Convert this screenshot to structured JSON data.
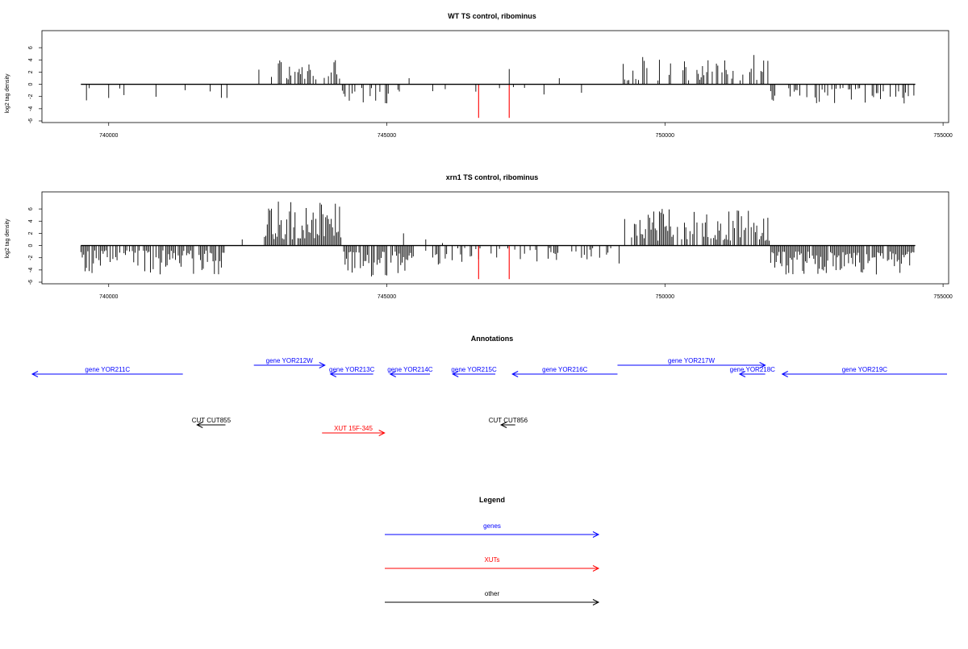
{
  "colors": {
    "bar": "#000000",
    "highlight": "#ff0000",
    "gene": "#0000ff",
    "xut": "#ff0000",
    "other": "#000000",
    "frame": "#000000"
  },
  "chart_data": [
    {
      "type": "bar",
      "title": "WT TS control, ribominus",
      "ylabel": "log2 tag density",
      "xlabel": "",
      "xlim": [
        738800,
        755100
      ],
      "ylim": [
        -6,
        8
      ],
      "xticks": [
        "740000",
        "745000",
        "750000",
        "755000"
      ],
      "yticks": [
        "6",
        "4",
        "2",
        "0",
        "-2",
        "-4",
        "-6"
      ],
      "grid": false,
      "seed": 7,
      "regions": [
        {
          "from": 739500,
          "to": 742200,
          "sign": -1,
          "min": 0.6,
          "max": 3.2,
          "density": 0.12
        },
        {
          "from": 742900,
          "to": 744200,
          "sign": 1,
          "min": 0.8,
          "max": 4.0,
          "density": 0.45
        },
        {
          "from": 744200,
          "to": 745300,
          "sign": -1,
          "min": 0.6,
          "max": 3.2,
          "density": 0.4
        },
        {
          "from": 745300,
          "to": 749200,
          "sign": -1,
          "min": 0.4,
          "max": 2.0,
          "density": 0.04
        },
        {
          "from": 749200,
          "to": 751900,
          "sign": 1,
          "min": 0.6,
          "max": 4.5,
          "density": 0.4
        },
        {
          "from": 751900,
          "to": 754500,
          "sign": -1,
          "min": 0.6,
          "max": 3.2,
          "density": 0.3
        }
      ],
      "spikes": [
        {
          "x": 742700,
          "y": 2.4
        },
        {
          "x": 745400,
          "y": 1.0
        },
        {
          "x": 746600,
          "y": -1.2
        },
        {
          "x": 747200,
          "y": 2.5
        },
        {
          "x": 748100,
          "y": 1.0
        },
        {
          "x": 751600,
          "y": 4.8
        }
      ],
      "highlights": [
        {
          "x": 746650,
          "y": -5.5
        },
        {
          "x": 747200,
          "y": -5.5
        }
      ]
    },
    {
      "type": "bar",
      "title": "xrn1 TS control, ribominus",
      "ylabel": "log2 tag density",
      "xlabel": "",
      "xlim": [
        738800,
        755100
      ],
      "ylim": [
        -6,
        8
      ],
      "xticks": [
        "740000",
        "745000",
        "750000",
        "755000"
      ],
      "yticks": [
        "6",
        "4",
        "2",
        "0",
        "-2",
        "-4",
        "-6"
      ],
      "grid": false,
      "seed": 21,
      "regions": [
        {
          "from": 739500,
          "to": 742100,
          "sign": -1,
          "min": 0.8,
          "max": 5.0,
          "density": 0.7
        },
        {
          "from": 742800,
          "to": 744200,
          "sign": 1,
          "min": 1.0,
          "max": 7.2,
          "density": 0.95
        },
        {
          "from": 744200,
          "to": 745500,
          "sign": -1,
          "min": 1.0,
          "max": 5.2,
          "density": 0.9
        },
        {
          "from": 745500,
          "to": 749200,
          "sign": -1,
          "min": 0.4,
          "max": 3.2,
          "density": 0.3
        },
        {
          "from": 749200,
          "to": 751900,
          "sign": 1,
          "min": 0.8,
          "max": 6.0,
          "density": 0.75
        },
        {
          "from": 751900,
          "to": 754500,
          "sign": -1,
          "min": 1.0,
          "max": 4.8,
          "density": 0.9
        }
      ],
      "spikes": [
        {
          "x": 742400,
          "y": 1.0
        },
        {
          "x": 745300,
          "y": 2.0
        },
        {
          "x": 745700,
          "y": 1.0
        },
        {
          "x": 746000,
          "y": 0.4
        }
      ],
      "highlights": [
        {
          "x": 746650,
          "y": -5.5
        },
        {
          "x": 747200,
          "y": -5.5
        }
      ]
    }
  ],
  "annotations": {
    "title": "Annotations",
    "xlim": [
      739000,
      755100
    ],
    "features": [
      {
        "label": "gene YOR211C",
        "start": 739000,
        "end": 741650,
        "strand": "-",
        "kind": "gene",
        "row": 1
      },
      {
        "label": "gene YOR212W",
        "start": 742900,
        "end": 744150,
        "strand": "+",
        "kind": "gene",
        "row": 0
      },
      {
        "label": "gene YOR213C",
        "start": 744250,
        "end": 745000,
        "strand": "-",
        "kind": "gene",
        "row": 1
      },
      {
        "label": "gene YOR214C",
        "start": 745300,
        "end": 746000,
        "strand": "-",
        "kind": "gene",
        "row": 1
      },
      {
        "label": "gene YOR215C",
        "start": 746400,
        "end": 747150,
        "strand": "-",
        "kind": "gene",
        "row": 1
      },
      {
        "label": "gene YOR216C",
        "start": 747450,
        "end": 749300,
        "strand": "-",
        "kind": "gene",
        "row": 1
      },
      {
        "label": "gene YOR217W",
        "start": 749300,
        "end": 751900,
        "strand": "+",
        "kind": "gene",
        "row": 0
      },
      {
        "label": "gene YOR218C",
        "start": 751450,
        "end": 751900,
        "strand": "-",
        "kind": "gene",
        "row": 1
      },
      {
        "label": "gene YOR219C",
        "start": 752200,
        "end": 755100,
        "strand": "-",
        "kind": "gene",
        "row": 1
      },
      {
        "label": "CUT CUT855",
        "start": 741900,
        "end": 742400,
        "strand": "-",
        "kind": "other",
        "row": 2
      },
      {
        "label": "XUT 15F-345",
        "start": 744100,
        "end": 745200,
        "strand": "+",
        "kind": "xut",
        "row": 3
      },
      {
        "label": "CUT CUT856",
        "start": 747250,
        "end": 747500,
        "strand": "-",
        "kind": "other",
        "row": 2
      }
    ]
  },
  "legend": {
    "title": "Legend",
    "items": [
      {
        "label": "genes",
        "kind": "gene"
      },
      {
        "label": "XUTs",
        "kind": "xut"
      },
      {
        "label": "other",
        "kind": "other"
      }
    ]
  }
}
